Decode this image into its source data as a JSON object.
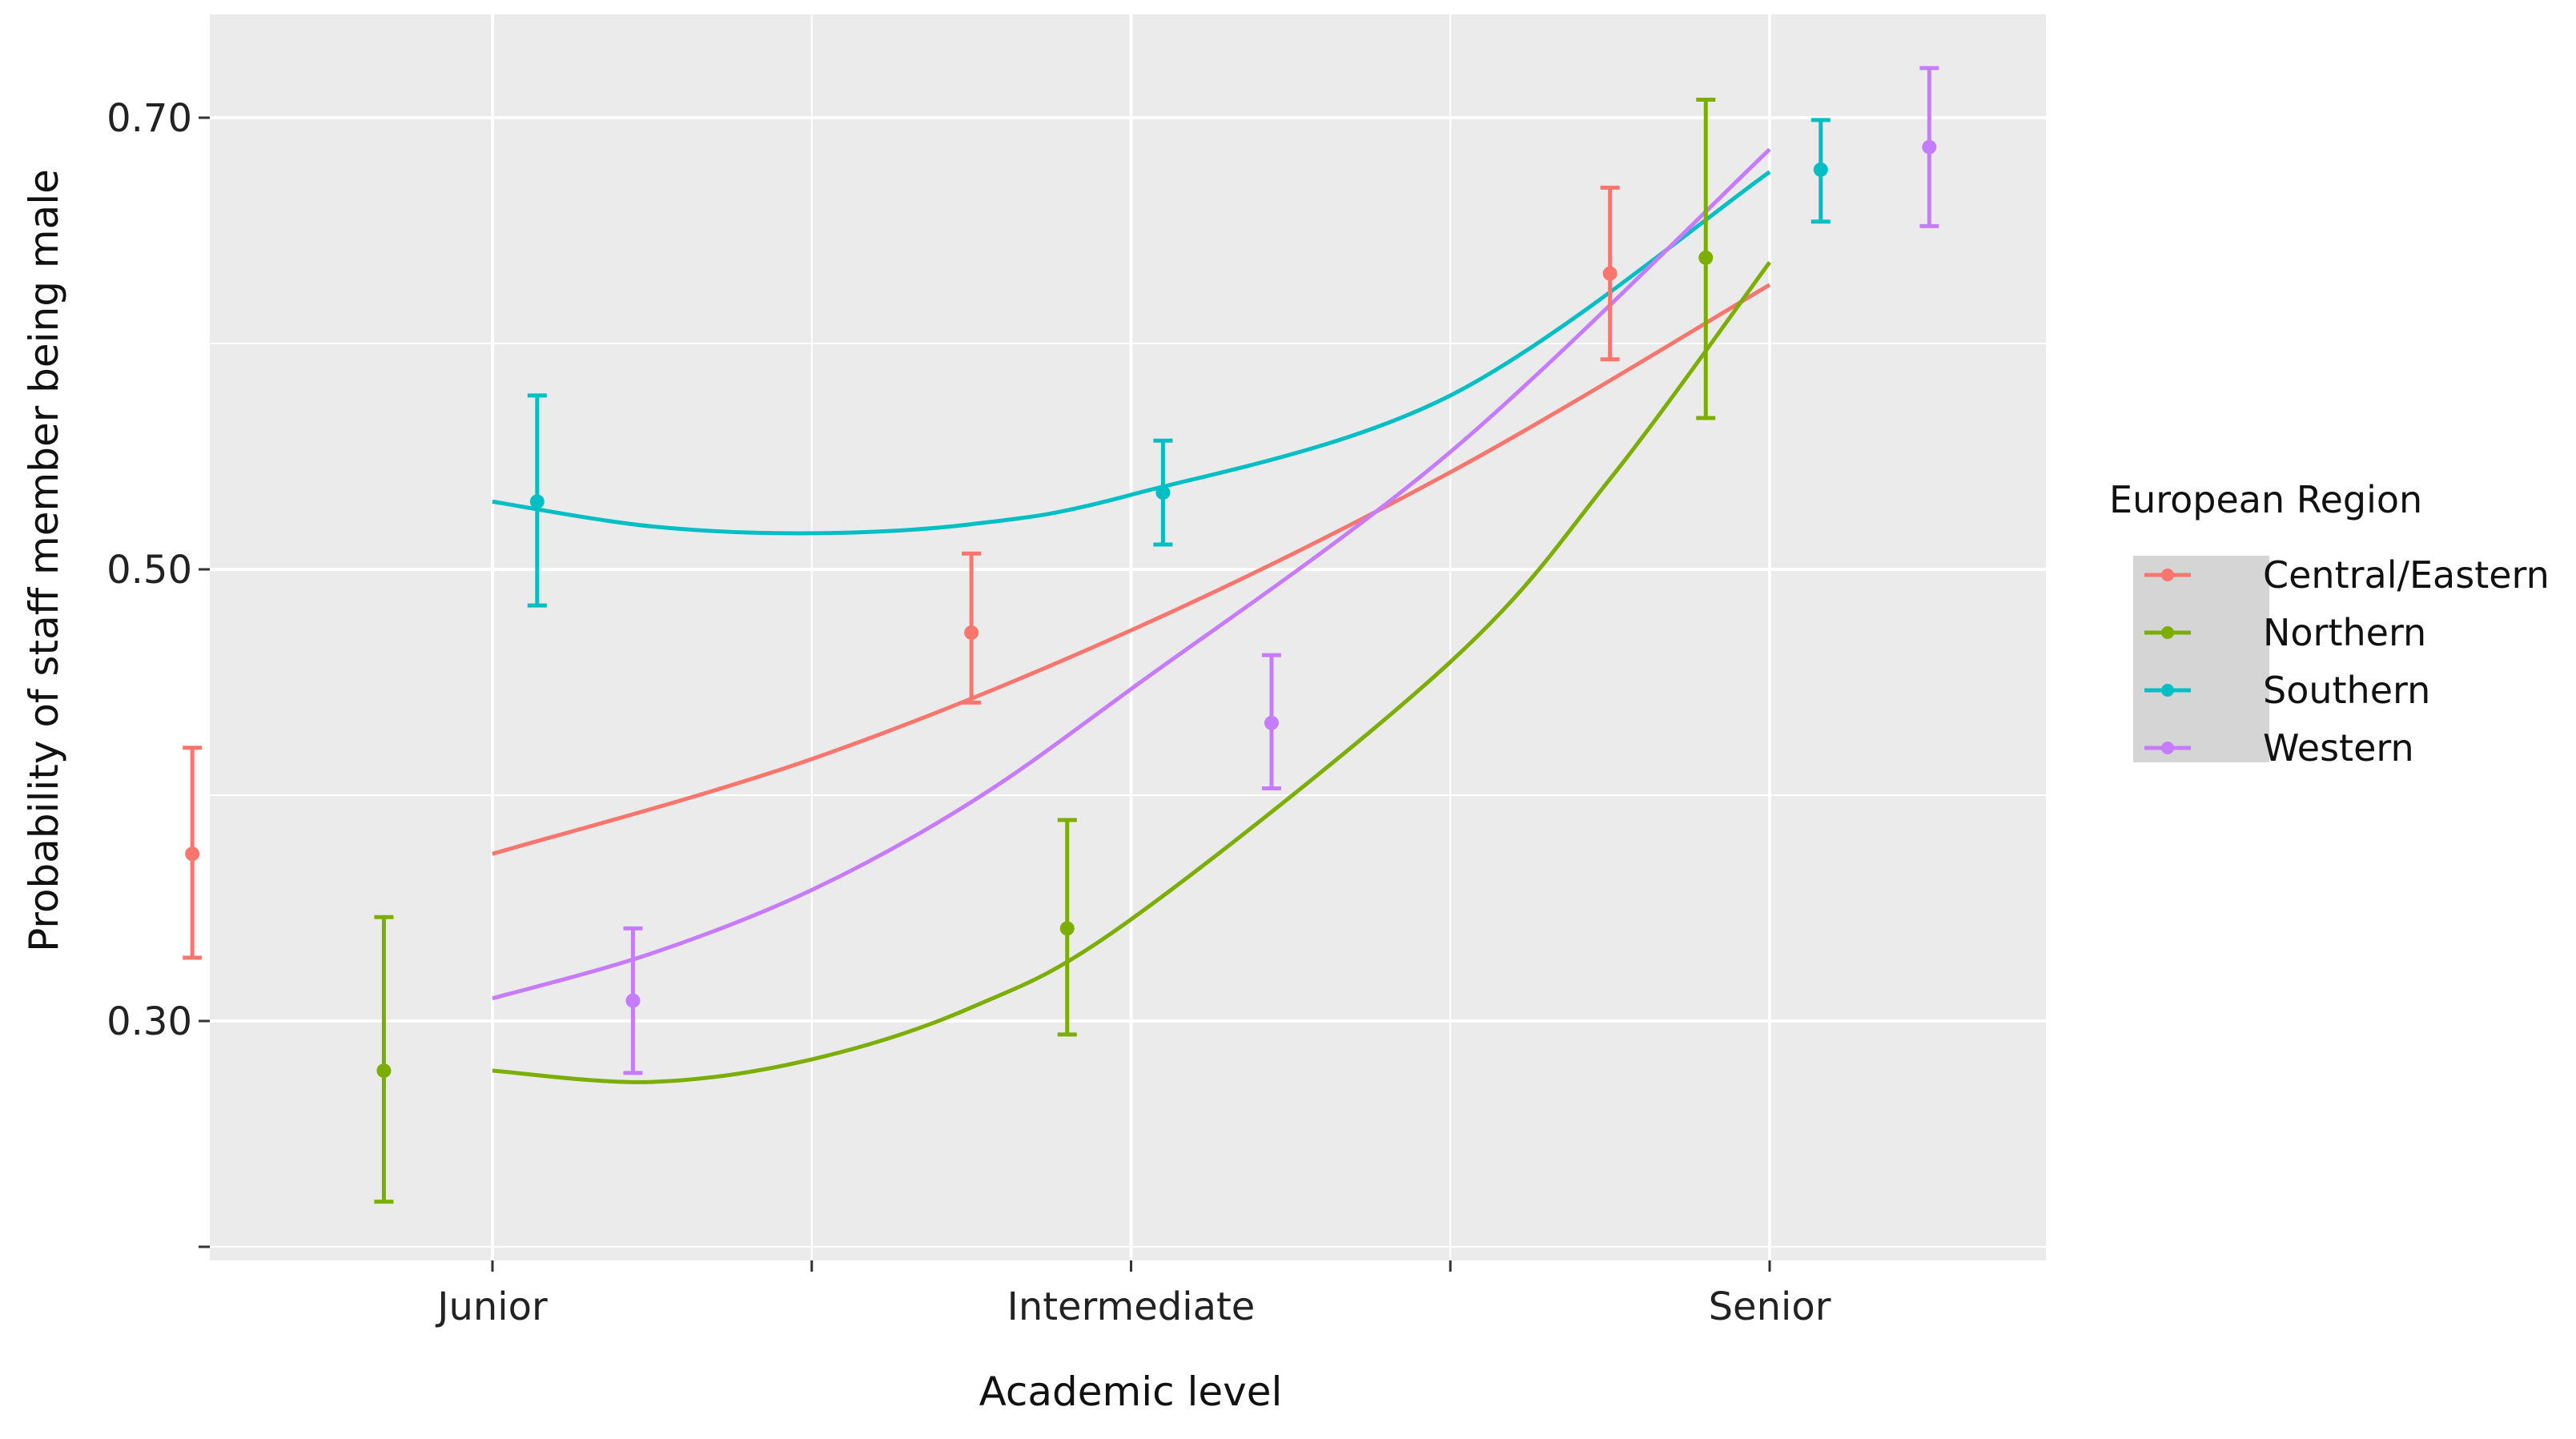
{
  "chart_data": {
    "type": "line",
    "xlabel": "Academic level",
    "ylabel": "Probability of staff member being male",
    "categories": [
      "Junior",
      "Intermediate",
      "Senior"
    ],
    "y_ticks": [
      "0.30",
      "0.50",
      "0.70"
    ],
    "ylim": [
      0.2,
      0.745
    ],
    "grid": true,
    "legend": {
      "title": "European Region",
      "position": "right"
    },
    "series": [
      {
        "name": "Central/Eastern",
        "color": "#F8766D",
        "curve": [
          [
            1,
            0.374
          ],
          [
            1.5,
            0.416
          ],
          [
            2,
            0.473
          ],
          [
            2.5,
            0.543
          ],
          [
            3,
            0.626
          ]
        ],
        "points": [
          {
            "x": 0.53,
            "y": 0.374,
            "low": 0.328,
            "high": 0.421
          },
          {
            "x": 1.75,
            "y": 0.472,
            "low": 0.441,
            "high": 0.507
          },
          {
            "x": 2.75,
            "y": 0.631,
            "low": 0.593,
            "high": 0.669
          }
        ]
      },
      {
        "name": "Northern",
        "color": "#7CAE00",
        "curve": [
          [
            1,
            0.278
          ],
          [
            1.25,
            0.273
          ],
          [
            1.5,
            0.283
          ],
          [
            1.75,
            0.306
          ],
          [
            2,
            0.345
          ],
          [
            2.5,
            0.459
          ],
          [
            2.75,
            0.54
          ],
          [
            3,
            0.636
          ]
        ],
        "points": [
          {
            "x": 0.83,
            "y": 0.278,
            "low": 0.22,
            "high": 0.346
          },
          {
            "x": 1.9,
            "y": 0.341,
            "low": 0.294,
            "high": 0.389
          },
          {
            "x": 2.9,
            "y": 0.638,
            "low": 0.567,
            "high": 0.708
          }
        ]
      },
      {
        "name": "Southern",
        "color": "#00BFC4",
        "curve": [
          [
            1,
            0.53
          ],
          [
            1.25,
            0.519
          ],
          [
            1.5,
            0.516
          ],
          [
            1.75,
            0.52
          ],
          [
            2,
            0.533
          ],
          [
            2.5,
            0.577
          ],
          [
            3,
            0.676
          ]
        ],
        "points": [
          {
            "x": 1.07,
            "y": 0.53,
            "low": 0.484,
            "high": 0.577
          },
          {
            "x": 2.05,
            "y": 0.534,
            "low": 0.511,
            "high": 0.557
          },
          {
            "x": 3.08,
            "y": 0.677,
            "low": 0.654,
            "high": 0.699
          }
        ]
      },
      {
        "name": "Western",
        "color": "#C77CFF",
        "curve": [
          [
            1,
            0.31
          ],
          [
            1.25,
            0.33
          ],
          [
            1.5,
            0.358
          ],
          [
            1.75,
            0.397
          ],
          [
            2,
            0.447
          ],
          [
            2.5,
            0.552
          ],
          [
            3,
            0.686
          ]
        ],
        "points": [
          {
            "x": 1.22,
            "y": 0.309,
            "low": 0.277,
            "high": 0.341
          },
          {
            "x": 2.22,
            "y": 0.432,
            "low": 0.403,
            "high": 0.462
          },
          {
            "x": 3.25,
            "y": 0.687,
            "low": 0.652,
            "high": 0.722
          }
        ]
      }
    ]
  }
}
